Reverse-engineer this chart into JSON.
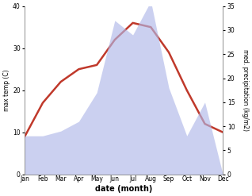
{
  "months": [
    "Jan",
    "Feb",
    "Mar",
    "Apr",
    "May",
    "Jun",
    "Jul",
    "Aug",
    "Sep",
    "Oct",
    "Nov",
    "Dec"
  ],
  "temperature": [
    9,
    17,
    22,
    25,
    26,
    32,
    36,
    35,
    29,
    20,
    12,
    10
  ],
  "precipitation": [
    8,
    8,
    9,
    11,
    17,
    32,
    29,
    36,
    18,
    8,
    15,
    0
  ],
  "temp_color": "#c0392b",
  "precip_color": "#b0b8e8",
  "precip_alpha": 0.65,
  "temp_ylim": [
    0,
    40
  ],
  "precip_ylim": [
    0,
    35
  ],
  "temp_yticks": [
    0,
    10,
    20,
    30,
    40
  ],
  "precip_yticks": [
    0,
    5,
    10,
    15,
    20,
    25,
    30,
    35
  ],
  "xlabel": "date (month)",
  "ylabel_left": "max temp (C)",
  "ylabel_right": "med. precipitation (kg/m2)",
  "line_width": 1.8,
  "bg_color": "#ffffff",
  "figsize": [
    3.18,
    2.47
  ],
  "dpi": 100
}
